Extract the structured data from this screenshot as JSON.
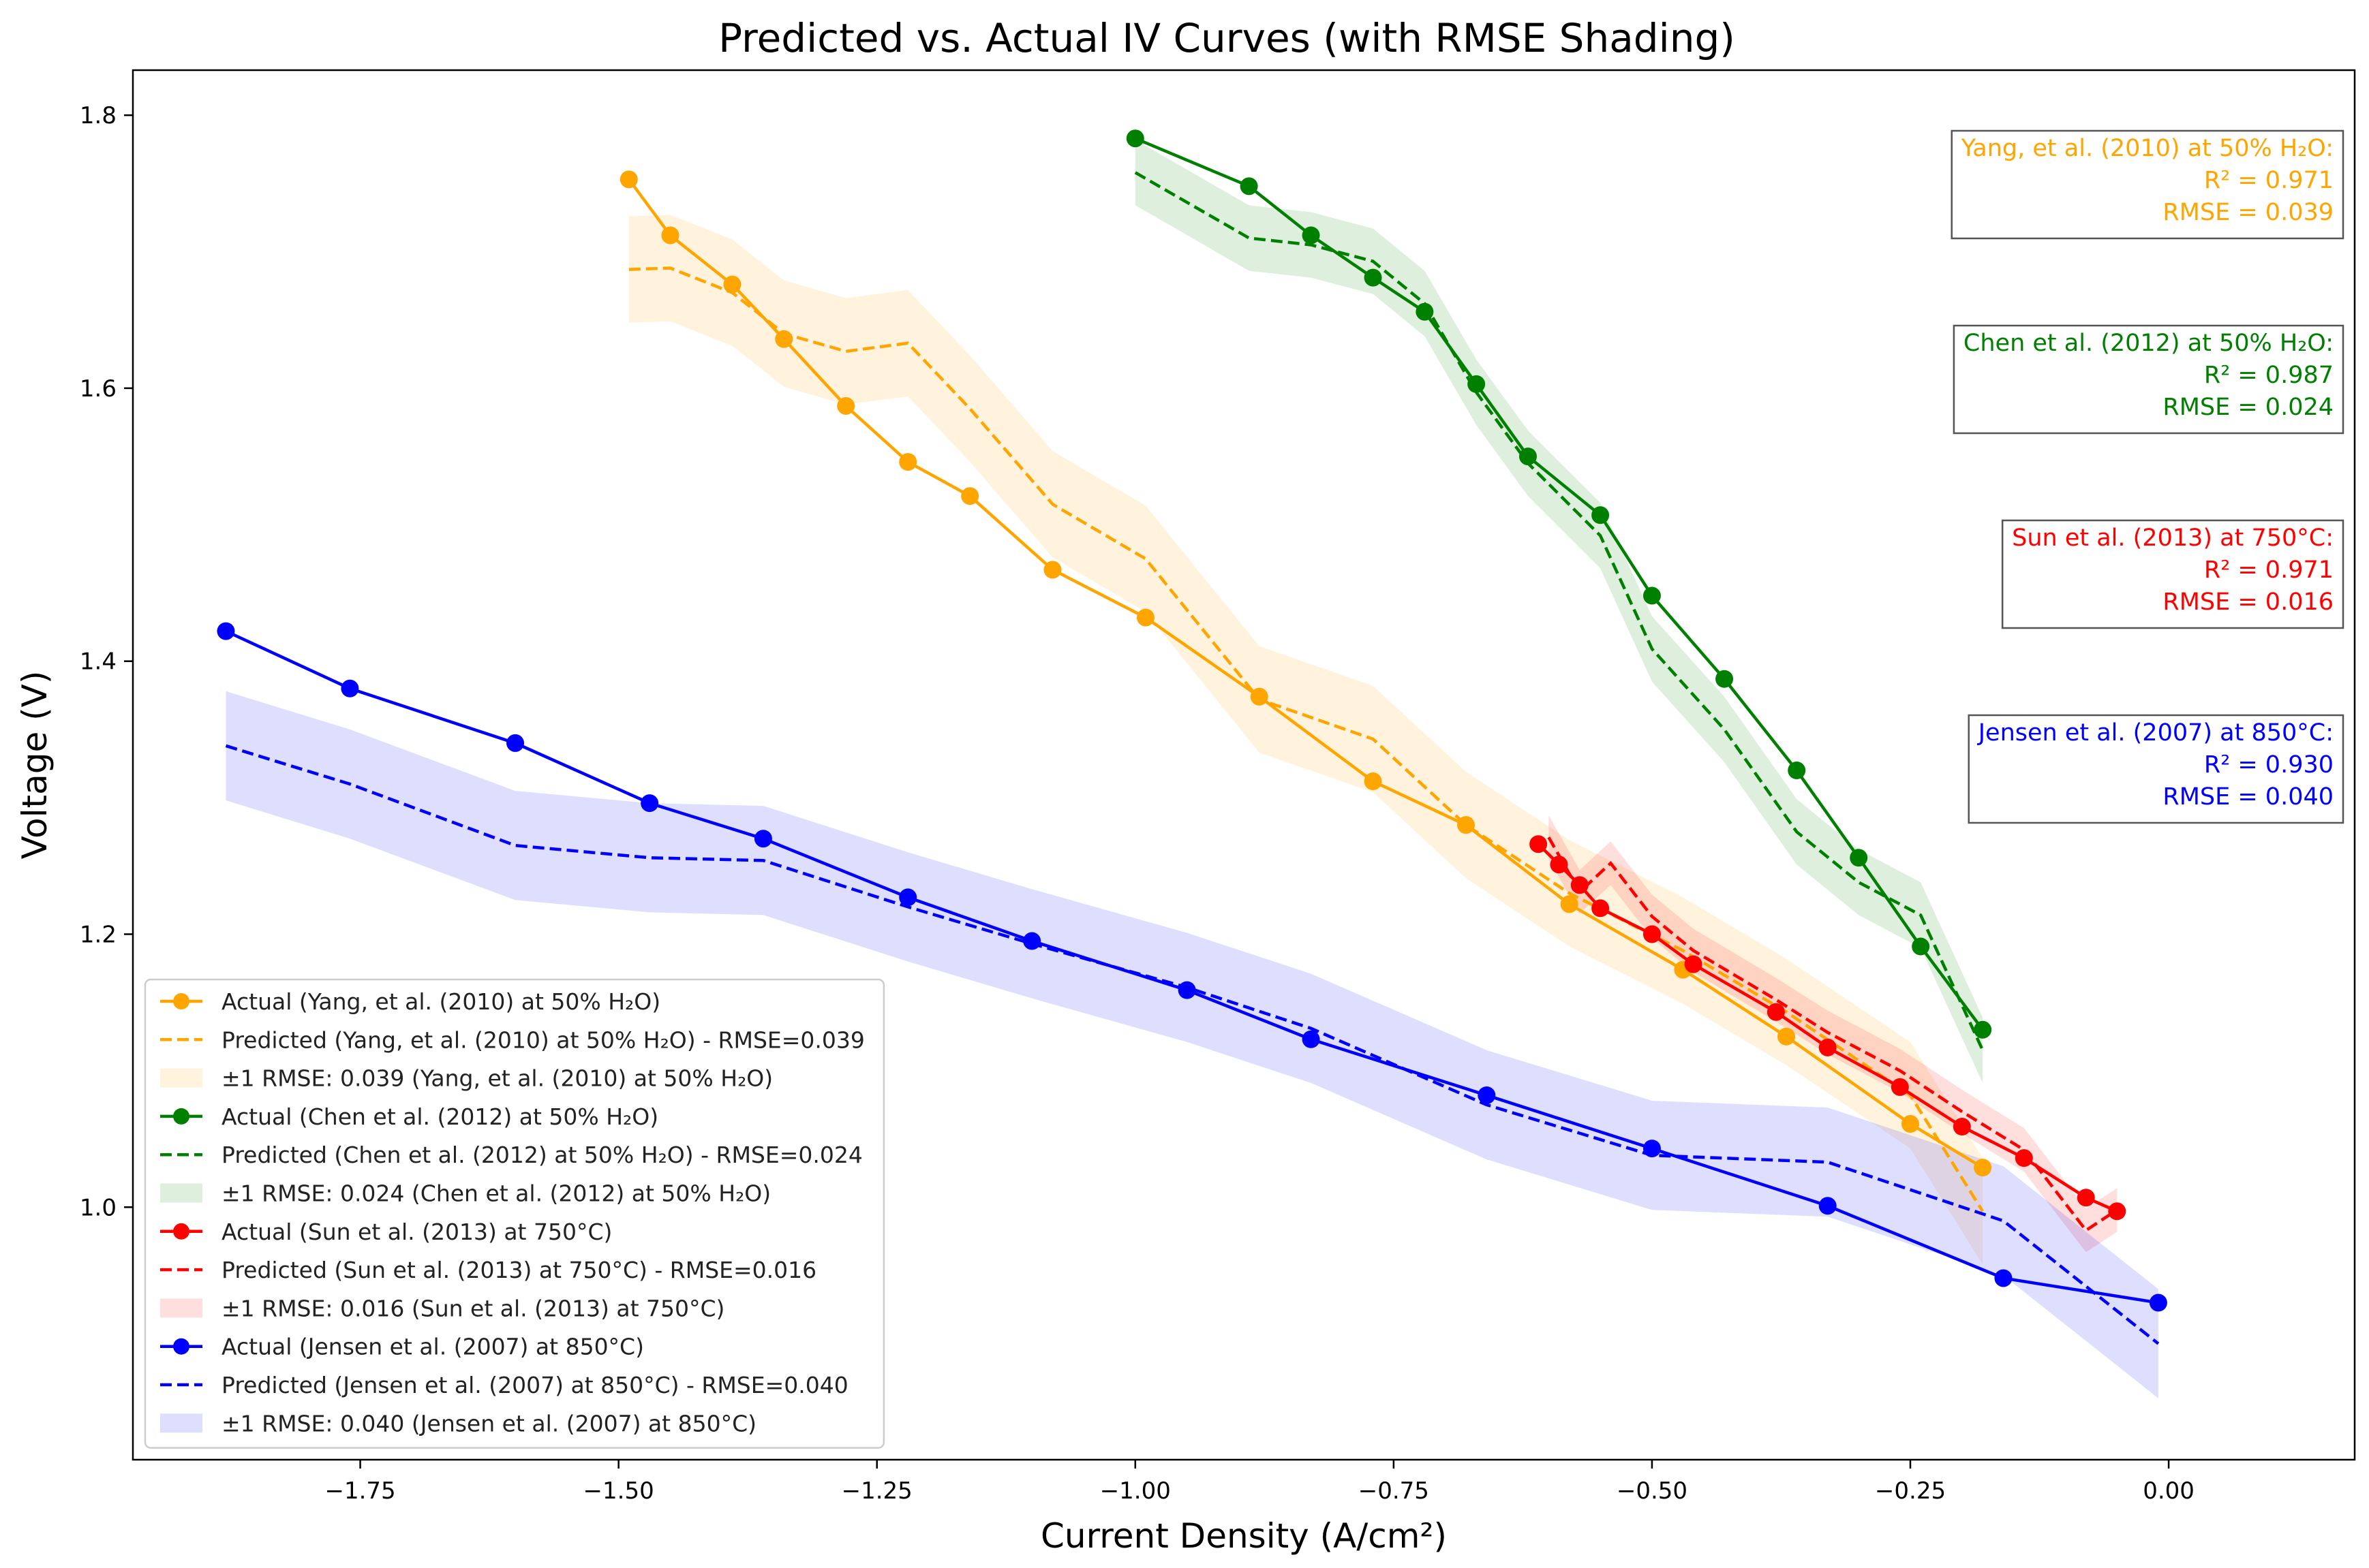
{
  "chart_data": {
    "type": "line",
    "title": "Predicted vs. Actual IV Curves (with RMSE Shading)",
    "xlabel": "Current Density (A/cm²)",
    "ylabel": "Voltage (V)",
    "xlim": [
      -1.97,
      0.18
    ],
    "ylim": [
      0.815,
      1.833
    ],
    "xticks": [
      -1.75,
      -1.5,
      -1.25,
      -1.0,
      -0.75,
      -0.5,
      -0.25,
      0.0
    ],
    "xtick_labels": [
      "−1.75",
      "−1.50",
      "−1.25",
      "−1.00",
      "−0.75",
      "−0.50",
      "−0.25",
      "0.00"
    ],
    "yticks": [
      1.0,
      1.2,
      1.4,
      1.6,
      1.8
    ],
    "ytick_labels": [
      "1.0",
      "1.2",
      "1.4",
      "1.6",
      "1.8"
    ],
    "series": [
      {
        "name": "Yang, et al. (2010) at 50% H₂O",
        "color": "#ffa500",
        "rmse": 0.039,
        "r2": 0.971,
        "actual": {
          "x": [
            -1.49,
            -1.45,
            -1.39,
            -1.34,
            -1.28,
            -1.22,
            -1.16,
            -1.08,
            -0.99,
            -0.88,
            -0.77,
            -0.68,
            -0.58,
            -0.47,
            -0.37,
            -0.25,
            -0.18
          ],
          "y": [
            1.753,
            1.712,
            1.676,
            1.636,
            1.587,
            1.546,
            1.521,
            1.467,
            1.432,
            1.374,
            1.312,
            1.28,
            1.222,
            1.174,
            1.125,
            1.061,
            1.029
          ]
        },
        "predicted": {
          "x": [
            -1.49,
            -1.45,
            -1.39,
            -1.34,
            -1.28,
            -1.22,
            -1.16,
            -1.08,
            -0.99,
            -0.88,
            -0.77,
            -0.68,
            -0.58,
            -0.47,
            -0.37,
            -0.25,
            -0.18
          ],
          "y": [
            1.687,
            1.688,
            1.67,
            1.64,
            1.627,
            1.633,
            1.585,
            1.515,
            1.475,
            1.372,
            1.343,
            1.28,
            1.23,
            1.188,
            1.143,
            1.082,
            0.997
          ]
        }
      },
      {
        "name": "Chen et al. (2012) at 50% H₂O",
        "color": "#008000",
        "rmse": 0.024,
        "r2": 0.987,
        "actual": {
          "x": [
            -1.0,
            -0.89,
            -0.83,
            -0.77,
            -0.72,
            -0.67,
            -0.62,
            -0.55,
            -0.5,
            -0.43,
            -0.36,
            -0.3,
            -0.24,
            -0.18
          ],
          "y": [
            1.783,
            1.748,
            1.712,
            1.681,
            1.656,
            1.603,
            1.55,
            1.507,
            1.448,
            1.387,
            1.32,
            1.256,
            1.191,
            1.13
          ]
        },
        "predicted": {
          "x": [
            -1.0,
            -0.89,
            -0.83,
            -0.77,
            -0.72,
            -0.67,
            -0.62,
            -0.55,
            -0.5,
            -0.43,
            -0.36,
            -0.3,
            -0.24,
            -0.18
          ],
          "y": [
            1.758,
            1.71,
            1.705,
            1.693,
            1.662,
            1.597,
            1.545,
            1.492,
            1.409,
            1.35,
            1.275,
            1.238,
            1.214,
            1.115
          ]
        }
      },
      {
        "name": "Sun et al. (2013) at 750°C",
        "color": "#ff0000",
        "rmse": 0.016,
        "r2": 0.971,
        "actual": {
          "x": [
            -0.61,
            -0.59,
            -0.57,
            -0.55,
            -0.5,
            -0.46,
            -0.38,
            -0.33,
            -0.26,
            -0.2,
            -0.14,
            -0.08,
            -0.05
          ],
          "y": [
            1.266,
            1.251,
            1.236,
            1.219,
            1.2,
            1.178,
            1.143,
            1.117,
            1.088,
            1.059,
            1.036,
            1.007,
            0.997
          ]
        },
        "predicted": {
          "x": [
            -0.6,
            -0.57,
            -0.54,
            -0.5,
            -0.46,
            -0.38,
            -0.33,
            -0.26,
            -0.2,
            -0.14,
            -0.08,
            -0.05
          ],
          "y": [
            1.271,
            1.231,
            1.252,
            1.213,
            1.188,
            1.152,
            1.128,
            1.1,
            1.07,
            1.042,
            0.983,
            0.998
          ]
        }
      },
      {
        "name": "Jensen et al. (2007) at 850°C",
        "color": "#0000ff",
        "rmse": 0.04,
        "r2": 0.93,
        "actual": {
          "x": [
            -1.88,
            -1.76,
            -1.6,
            -1.47,
            -1.36,
            -1.22,
            -1.1,
            -0.95,
            -0.83,
            -0.66,
            -0.5,
            -0.33,
            -0.16,
            -0.01
          ],
          "y": [
            1.422,
            1.38,
            1.34,
            1.296,
            1.27,
            1.227,
            1.195,
            1.159,
            1.123,
            1.082,
            1.043,
            1.001,
            0.948,
            0.93
          ]
        },
        "predicted": {
          "x": [
            -1.88,
            -1.76,
            -1.6,
            -1.47,
            -1.36,
            -1.22,
            -1.1,
            -0.95,
            -0.83,
            -0.66,
            -0.5,
            -0.33,
            -0.16,
            -0.01
          ],
          "y": [
            1.338,
            1.31,
            1.265,
            1.256,
            1.254,
            1.22,
            1.193,
            1.161,
            1.131,
            1.075,
            1.038,
            1.033,
            0.99,
            0.9
          ]
        }
      }
    ],
    "legend": {
      "position": "lower-left",
      "entries": [
        {
          "kind": "actual",
          "series": 0,
          "label": "Actual (Yang, et al. (2010) at 50% H₂O)"
        },
        {
          "kind": "predicted",
          "series": 0,
          "label": "Predicted (Yang, et al. (2010) at 50% H₂O) - RMSE=0.039"
        },
        {
          "kind": "band",
          "series": 0,
          "label": "±1 RMSE: 0.039 (Yang, et al. (2010) at 50% H₂O)"
        },
        {
          "kind": "actual",
          "series": 1,
          "label": "Actual (Chen et al. (2012) at 50% H₂O)"
        },
        {
          "kind": "predicted",
          "series": 1,
          "label": "Predicted (Chen et al. (2012) at 50% H₂O) - RMSE=0.024"
        },
        {
          "kind": "band",
          "series": 1,
          "label": "±1 RMSE: 0.024 (Chen et al. (2012) at 50% H₂O)"
        },
        {
          "kind": "actual",
          "series": 2,
          "label": "Actual (Sun et al. (2013) at 750°C)"
        },
        {
          "kind": "predicted",
          "series": 2,
          "label": "Predicted (Sun et al. (2013) at 750°C) - RMSE=0.016"
        },
        {
          "kind": "band",
          "series": 2,
          "label": "±1 RMSE: 0.016 (Sun et al. (2013) at 750°C)"
        },
        {
          "kind": "actual",
          "series": 3,
          "label": "Actual (Jensen et al. (2007) at 850°C)"
        },
        {
          "kind": "predicted",
          "series": 3,
          "label": "Predicted (Jensen et al. (2007) at 850°C) - RMSE=0.040"
        },
        {
          "kind": "band",
          "series": 3,
          "label": "±1 RMSE: 0.040 (Jensen et al. (2007) at 850°C)"
        }
      ]
    },
    "annotations": [
      {
        "series": 0,
        "lines": [
          "Yang, et al. (2010) at 50% H₂O:",
          "R² = 0.971",
          "RMSE = 0.039"
        ]
      },
      {
        "series": 1,
        "lines": [
          "Chen et al. (2012) at 50% H₂O:",
          "R² = 0.987",
          "RMSE = 0.024"
        ]
      },
      {
        "series": 2,
        "lines": [
          "Sun et al. (2013) at 750°C:",
          "R² = 0.971",
          "RMSE = 0.016"
        ]
      },
      {
        "series": 3,
        "lines": [
          "Jensen et al. (2007) at 850°C:",
          "R² = 0.930",
          "RMSE = 0.040"
        ]
      }
    ]
  }
}
